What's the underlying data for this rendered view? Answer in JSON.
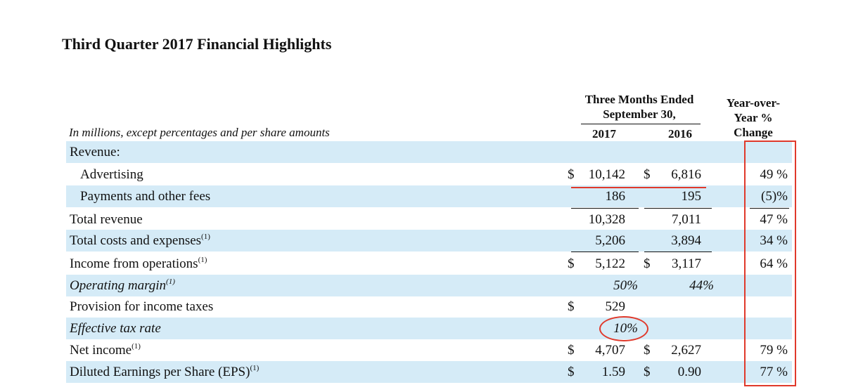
{
  "title": "Third Quarter 2017 Financial Highlights",
  "header": {
    "period_line1": "Three Months Ended",
    "period_line2": "September 30,",
    "year1": "2017",
    "year2": "2016",
    "yoy_line1": "Year-over-",
    "yoy_line2": "Year %",
    "yoy_line3": "Change"
  },
  "subtitle": "In millions, except percentages and per share amounts",
  "rows": [
    {
      "label": "Revenue:",
      "note": "",
      "d1": "",
      "v2017": "",
      "d2": "",
      "v2016": "",
      "yoy": "",
      "shaded": true
    },
    {
      "label": "Advertising",
      "note": "",
      "d1": "$",
      "v2017": "10,142",
      "d2": "$",
      "v2016": "6,816",
      "yoy": "49 %",
      "shaded": false
    },
    {
      "label": "Payments and other fees",
      "note": "",
      "d1": "",
      "v2017": "186",
      "d2": "",
      "v2016": "195",
      "yoy": "(5)%",
      "shaded": true
    },
    {
      "label": "Total revenue",
      "note": "",
      "d1": "",
      "v2017": "10,328",
      "d2": "",
      "v2016": "7,011",
      "yoy": "47 %",
      "shaded": false
    },
    {
      "label": "Total costs and expenses",
      "note": "(1)",
      "d1": "",
      "v2017": "5,206",
      "d2": "",
      "v2016": "3,894",
      "yoy": "34 %",
      "shaded": true
    },
    {
      "label": "Income from operations",
      "note": "(1)",
      "d1": "$",
      "v2017": "5,122",
      "d2": "$",
      "v2016": "3,117",
      "yoy": "64 %",
      "shaded": false
    },
    {
      "label": "Operating margin",
      "note": "(1)",
      "d1": "",
      "v2017": "50%",
      "d2": "",
      "v2016": "44%",
      "yoy": "",
      "shaded": true
    },
    {
      "label": "Provision for income taxes",
      "note": "",
      "d1": "$",
      "v2017": "529",
      "d2": "",
      "v2016": "",
      "yoy": "",
      "shaded": false
    },
    {
      "label": "Effective tax rate",
      "note": "",
      "d1": "",
      "v2017": "10%",
      "d2": "",
      "v2016": "",
      "yoy": "",
      "shaded": true
    },
    {
      "label": "Net income",
      "note": "(1)",
      "d1": "$",
      "v2017": "4,707",
      "d2": "$",
      "v2016": "2,627",
      "yoy": "79 %",
      "shaded": false
    },
    {
      "label": "Diluted Earnings per Share (EPS)",
      "note": "(1)",
      "d1": "$",
      "v2017": "1.59",
      "d2": "$",
      "v2016": "0.90",
      "yoy": "77 %",
      "shaded": true
    }
  ],
  "colors": {
    "shade": "#d5ebf7",
    "annotation": "#e0392b"
  }
}
